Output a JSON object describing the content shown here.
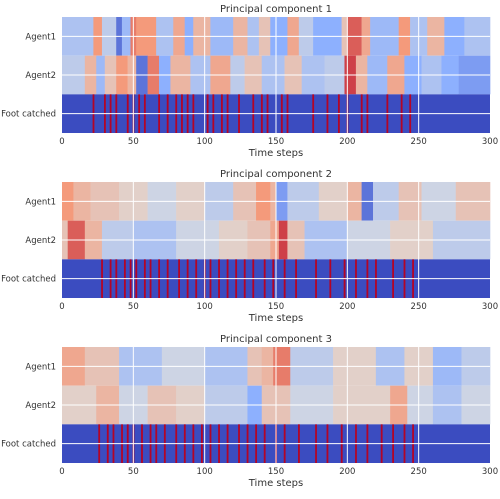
{
  "chart_data": [
    {
      "type": "heatmap",
      "title": "Principal component 1",
      "xlabel": "Time steps",
      "rows": [
        "Agent1",
        "Agent2",
        "Foot catched"
      ],
      "xlim": [
        0,
        300
      ],
      "xticks": [
        0,
        50,
        100,
        150,
        200,
        250,
        300
      ],
      "grid": true,
      "colormap": "coolwarm",
      "value_range": [
        -1,
        1
      ],
      "agent_segments": {
        "Agent1": [
          {
            "x": [
              0,
              22
            ],
            "v": -0.3
          },
          {
            "x": [
              22,
              28
            ],
            "v": 0.5
          },
          {
            "x": [
              28,
              38
            ],
            "v": -0.2
          },
          {
            "x": [
              38,
              42
            ],
            "v": -0.8
          },
          {
            "x": [
              42,
              48
            ],
            "v": -0.4
          },
          {
            "x": [
              48,
              52
            ],
            "v": 0.6
          },
          {
            "x": [
              52,
              66
            ],
            "v": 0.5
          },
          {
            "x": [
              66,
              78
            ],
            "v": -0.3
          },
          {
            "x": [
              78,
              86
            ],
            "v": 0.4
          },
          {
            "x": [
              86,
              92
            ],
            "v": -0.5
          },
          {
            "x": [
              92,
              104
            ],
            "v": 0.3
          },
          {
            "x": [
              104,
              120
            ],
            "v": -0.4
          },
          {
            "x": [
              120,
              130
            ],
            "v": 0.3
          },
          {
            "x": [
              130,
              138
            ],
            "v": -0.3
          },
          {
            "x": [
              138,
              146
            ],
            "v": 0.2
          },
          {
            "x": [
              146,
              158
            ],
            "v": -0.5
          },
          {
            "x": [
              158,
              166
            ],
            "v": 0.4
          },
          {
            "x": [
              166,
              176
            ],
            "v": -0.2
          },
          {
            "x": [
              176,
              196
            ],
            "v": -0.5
          },
          {
            "x": [
              196,
              200
            ],
            "v": 0.2
          },
          {
            "x": [
              200,
              210
            ],
            "v": 0.7
          },
          {
            "x": [
              210,
              216
            ],
            "v": 0.4
          },
          {
            "x": [
              216,
              236
            ],
            "v": -0.4
          },
          {
            "x": [
              236,
              244
            ],
            "v": 0.5
          },
          {
            "x": [
              244,
              256
            ],
            "v": -0.3
          },
          {
            "x": [
              256,
              268
            ],
            "v": 0.3
          },
          {
            "x": [
              268,
              282
            ],
            "v": -0.5
          },
          {
            "x": [
              282,
              300
            ],
            "v": -0.3
          }
        ],
        "Agent2": [
          {
            "x": [
              0,
              16
            ],
            "v": -0.2
          },
          {
            "x": [
              16,
              24
            ],
            "v": 0.3
          },
          {
            "x": [
              24,
              30
            ],
            "v": -0.4
          },
          {
            "x": [
              30,
              38
            ],
            "v": 0.2
          },
          {
            "x": [
              38,
              46
            ],
            "v": 0.5
          },
          {
            "x": [
              46,
              52
            ],
            "v": 0.3
          },
          {
            "x": [
              52,
              60
            ],
            "v": -0.8
          },
          {
            "x": [
              60,
              68
            ],
            "v": 0.6
          },
          {
            "x": [
              68,
              76
            ],
            "v": -0.5
          },
          {
            "x": [
              76,
              90
            ],
            "v": 0.3
          },
          {
            "x": [
              90,
              104
            ],
            "v": -0.3
          },
          {
            "x": [
              104,
              118
            ],
            "v": 0.4
          },
          {
            "x": [
              118,
              128
            ],
            "v": -0.2
          },
          {
            "x": [
              128,
              140
            ],
            "v": 0.2
          },
          {
            "x": [
              140,
              156
            ],
            "v": -0.3
          },
          {
            "x": [
              156,
              168
            ],
            "v": 0.2
          },
          {
            "x": [
              168,
              184
            ],
            "v": -0.3
          },
          {
            "x": [
              184,
              198
            ],
            "v": -0.2
          },
          {
            "x": [
              198,
              206
            ],
            "v": 0.8
          },
          {
            "x": [
              206,
              214
            ],
            "v": 0.3
          },
          {
            "x": [
              214,
              228
            ],
            "v": -0.4
          },
          {
            "x": [
              228,
              240
            ],
            "v": 0.4
          },
          {
            "x": [
              240,
              252
            ],
            "v": -0.5
          },
          {
            "x": [
              252,
              266
            ],
            "v": -0.3
          },
          {
            "x": [
              266,
              278
            ],
            "v": -0.5
          },
          {
            "x": [
              278,
              300
            ],
            "v": -0.6
          }
        ]
      },
      "foot_catched_steps": [
        22,
        30,
        34,
        38,
        46,
        50,
        54,
        58,
        68,
        74,
        80,
        84,
        88,
        92,
        102,
        106,
        112,
        116,
        124,
        134,
        140,
        144,
        154,
        158,
        176,
        186,
        194,
        200,
        210,
        214,
        228,
        238,
        244
      ]
    },
    {
      "type": "heatmap",
      "title": "Principal component 2",
      "xlabel": "Time steps",
      "rows": [
        "Agent1",
        "Agent2",
        "Foot catched"
      ],
      "xlim": [
        0,
        300
      ],
      "xticks": [
        0,
        50,
        100,
        150,
        200,
        250,
        300
      ],
      "grid": true,
      "colormap": "coolwarm",
      "value_range": [
        -1,
        1
      ],
      "agent_segments": {
        "Agent1": [
          {
            "x": [
              0,
              8
            ],
            "v": 0.5
          },
          {
            "x": [
              8,
              20
            ],
            "v": 0.3
          },
          {
            "x": [
              20,
              40
            ],
            "v": 0.2
          },
          {
            "x": [
              40,
              60
            ],
            "v": 0.1
          },
          {
            "x": [
              60,
              80
            ],
            "v": -0.1
          },
          {
            "x": [
              80,
              100
            ],
            "v": 0.1
          },
          {
            "x": [
              100,
              120
            ],
            "v": -0.2
          },
          {
            "x": [
              120,
              136
            ],
            "v": 0.2
          },
          {
            "x": [
              136,
              146
            ],
            "v": 0.5
          },
          {
            "x": [
              146,
              150
            ],
            "v": 0.3
          },
          {
            "x": [
              150,
              158
            ],
            "v": -0.6
          },
          {
            "x": [
              158,
              180
            ],
            "v": -0.2
          },
          {
            "x": [
              180,
              200
            ],
            "v": 0.1
          },
          {
            "x": [
              200,
              210
            ],
            "v": 0.3
          },
          {
            "x": [
              210,
              218
            ],
            "v": -0.8
          },
          {
            "x": [
              218,
              236
            ],
            "v": -0.2
          },
          {
            "x": [
              236,
              252
            ],
            "v": 0.2
          },
          {
            "x": [
              252,
              276
            ],
            "v": -0.1
          },
          {
            "x": [
              276,
              300
            ],
            "v": 0.2
          }
        ],
        "Agent2": [
          {
            "x": [
              0,
              4
            ],
            "v": 0.2
          },
          {
            "x": [
              4,
              16
            ],
            "v": 0.7
          },
          {
            "x": [
              16,
              28
            ],
            "v": 0.3
          },
          {
            "x": [
              28,
              50
            ],
            "v": -0.2
          },
          {
            "x": [
              50,
              80
            ],
            "v": -0.3
          },
          {
            "x": [
              80,
              110
            ],
            "v": -0.1
          },
          {
            "x": [
              110,
              130
            ],
            "v": 0.1
          },
          {
            "x": [
              130,
              146
            ],
            "v": 0.2
          },
          {
            "x": [
              146,
              152
            ],
            "v": 0.4
          },
          {
            "x": [
              152,
              158
            ],
            "v": 0.8
          },
          {
            "x": [
              158,
              170
            ],
            "v": 0.2
          },
          {
            "x": [
              170,
              200
            ],
            "v": -0.3
          },
          {
            "x": [
              200,
              230
            ],
            "v": -0.1
          },
          {
            "x": [
              230,
              260
            ],
            "v": 0.1
          },
          {
            "x": [
              260,
              300
            ],
            "v": -0.2
          }
        ]
      },
      "foot_catched_steps": [
        28,
        34,
        38,
        44,
        48,
        52,
        58,
        62,
        68,
        74,
        82,
        88,
        94,
        100,
        104,
        110,
        116,
        122,
        128,
        134,
        142,
        148,
        156,
        164,
        178,
        188,
        198,
        206,
        214,
        220,
        232,
        240,
        246
      ]
    },
    {
      "type": "heatmap",
      "title": "Principal component 3",
      "xlabel": "Time steps",
      "rows": [
        "Agent1",
        "Agent2",
        "Foot catched"
      ],
      "xlim": [
        0,
        300
      ],
      "xticks": [
        0,
        50,
        100,
        150,
        200,
        250,
        300
      ],
      "grid": true,
      "colormap": "coolwarm",
      "value_range": [
        -1,
        1
      ],
      "agent_segments": {
        "Agent1": [
          {
            "x": [
              0,
              16
            ],
            "v": 0.4
          },
          {
            "x": [
              16,
              40
            ],
            "v": 0.2
          },
          {
            "x": [
              40,
              70
            ],
            "v": -0.3
          },
          {
            "x": [
              70,
              100
            ],
            "v": -0.1
          },
          {
            "x": [
              100,
              130
            ],
            "v": -0.3
          },
          {
            "x": [
              130,
              140
            ],
            "v": 0.2
          },
          {
            "x": [
              140,
              148
            ],
            "v": 0.3
          },
          {
            "x": [
              148,
              160
            ],
            "v": 0.6
          },
          {
            "x": [
              160,
              190
            ],
            "v": -0.2
          },
          {
            "x": [
              190,
              220
            ],
            "v": 0.1
          },
          {
            "x": [
              220,
              240
            ],
            "v": -0.3
          },
          {
            "x": [
              240,
              260
            ],
            "v": 0.1
          },
          {
            "x": [
              260,
              280
            ],
            "v": -0.4
          },
          {
            "x": [
              280,
              300
            ],
            "v": -0.2
          }
        ],
        "Agent2": [
          {
            "x": [
              0,
              24
            ],
            "v": 0.1
          },
          {
            "x": [
              24,
              40
            ],
            "v": 0.3
          },
          {
            "x": [
              40,
              60
            ],
            "v": -0.1
          },
          {
            "x": [
              60,
              80
            ],
            "v": 0.2
          },
          {
            "x": [
              80,
              100
            ],
            "v": 0.1
          },
          {
            "x": [
              100,
              130
            ],
            "v": -0.2
          },
          {
            "x": [
              130,
              140
            ],
            "v": -0.5
          },
          {
            "x": [
              140,
              160
            ],
            "v": 0.2
          },
          {
            "x": [
              160,
              190
            ],
            "v": -0.1
          },
          {
            "x": [
              190,
              230
            ],
            "v": 0.1
          },
          {
            "x": [
              230,
              242
            ],
            "v": 0.4
          },
          {
            "x": [
              242,
              260
            ],
            "v": -0.1
          },
          {
            "x": [
              260,
              280
            ],
            "v": -0.3
          },
          {
            "x": [
              280,
              300
            ],
            "v": -0.1
          }
        ]
      },
      "foot_catched_steps": [
        26,
        32,
        36,
        42,
        46,
        50,
        56,
        62,
        66,
        72,
        80,
        86,
        92,
        98,
        104,
        110,
        116,
        124,
        130,
        136,
        142,
        150,
        156,
        166,
        178,
        186,
        196,
        206,
        214,
        224,
        232,
        240,
        246
      ]
    }
  ]
}
